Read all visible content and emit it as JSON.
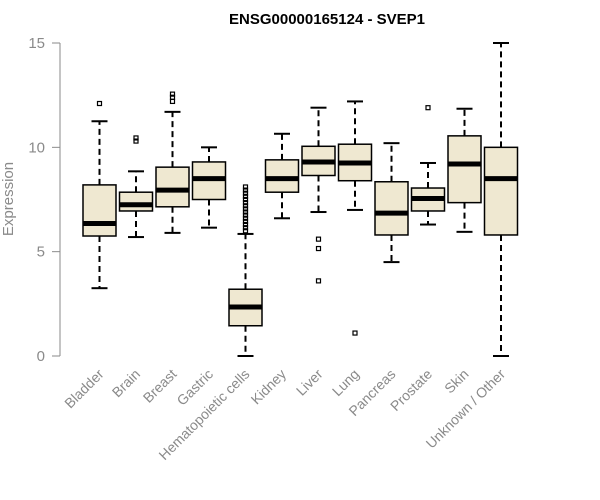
{
  "chart_data": {
    "type": "boxplot",
    "title": "ENSG00000165124 - SVEP1",
    "xlabel": "",
    "ylabel": "Expression",
    "ylim": [
      0,
      15
    ],
    "yticks": [
      0,
      5,
      10,
      15
    ],
    "colors": {
      "box_fill": "#efe8d1",
      "stroke": "#000000",
      "axis": "#8a8a8a"
    },
    "categories": [
      "Bladder",
      "Brain",
      "Breast",
      "Gastric",
      "Hematopoietic cells",
      "Kidney",
      "Liver",
      "Lung",
      "Pancreas",
      "Prostate",
      "Skin",
      "Unknown / Other"
    ],
    "boxes": [
      {
        "min": 3.25,
        "q1": 5.75,
        "median": 6.35,
        "q3": 8.2,
        "max": 11.25,
        "outliers": [
          12.1
        ]
      },
      {
        "min": 5.7,
        "q1": 6.95,
        "median": 7.25,
        "q3": 7.85,
        "max": 8.85,
        "outliers": [
          10.3,
          10.45
        ]
      },
      {
        "min": 5.9,
        "q1": 7.15,
        "median": 7.95,
        "q3": 9.05,
        "max": 11.7,
        "outliers": [
          12.2,
          12.4,
          12.55
        ]
      },
      {
        "min": 6.15,
        "q1": 7.5,
        "median": 8.5,
        "q3": 9.3,
        "max": 10.0,
        "outliers": []
      },
      {
        "min": 0.0,
        "q1": 1.45,
        "median": 2.35,
        "q3": 3.2,
        "max": 5.85,
        "outliers": [
          6.0,
          6.15,
          6.3,
          6.45,
          6.6,
          6.75,
          6.9,
          7.05,
          7.2,
          7.35,
          7.5,
          7.65,
          7.8,
          7.95,
          8.1
        ]
      },
      {
        "min": 6.6,
        "q1": 7.85,
        "median": 8.5,
        "q3": 9.4,
        "max": 10.65,
        "outliers": []
      },
      {
        "min": 6.9,
        "q1": 8.65,
        "median": 9.3,
        "q3": 10.05,
        "max": 11.9,
        "outliers": [
          5.6,
          5.15,
          3.6
        ]
      },
      {
        "min": 7.0,
        "q1": 8.4,
        "median": 9.25,
        "q3": 10.15,
        "max": 12.2,
        "outliers": [
          1.1
        ]
      },
      {
        "min": 4.5,
        "q1": 5.8,
        "median": 6.85,
        "q3": 8.35,
        "max": 10.2,
        "outliers": []
      },
      {
        "min": 6.3,
        "q1": 6.95,
        "median": 7.55,
        "q3": 8.05,
        "max": 9.25,
        "outliers": [
          11.9
        ]
      },
      {
        "min": 5.95,
        "q1": 7.35,
        "median": 9.2,
        "q3": 10.55,
        "max": 11.85,
        "outliers": []
      },
      {
        "min": 0.0,
        "q1": 5.8,
        "median": 8.5,
        "q3": 10.0,
        "max": 15.0,
        "outliers": []
      }
    ]
  }
}
